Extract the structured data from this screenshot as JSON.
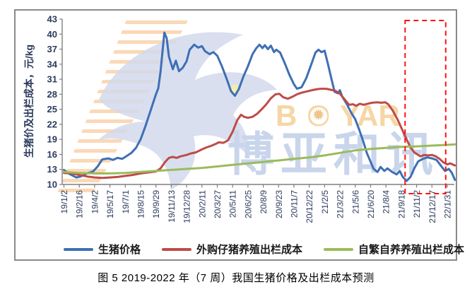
{
  "caption": "图 5 2019-2022 年（7 周）我国生猪价格及出栏成本预测",
  "watermark": {
    "brand_b": "B",
    "brand_o": "O",
    "sun_glyph": "✹",
    "brand_yar": "YAR",
    "brand_cn": "博亚和讯",
    "orange": "#F6D6A4",
    "blue": "#C9D5EB"
  },
  "chart_data": {
    "type": "line",
    "title": "图 5 2019-2022 年（7 周）我国生猪价格及出栏成本预测",
    "ylabel": "生猪价及出栏成本，元/kg",
    "ylim": [
      10,
      43
    ],
    "yticks": [
      43,
      40,
      37,
      34,
      31,
      28,
      25,
      22,
      19,
      16,
      13,
      10
    ],
    "x_tick_labels": [
      "19/1/2",
      "19/2/16",
      "19/4/2",
      "19/5/17",
      "19/7/1",
      "19/8/15",
      "19/9/29",
      "19/11/13",
      "19/12/28",
      "20/2/11",
      "20/3/27",
      "20/5/11",
      "20/6/25",
      "20/8/9",
      "20/9/23",
      "20/11/7",
      "20/12/22",
      "21/2/5",
      "21/3/22",
      "21/5/6",
      "21/6/20",
      "21/8/4",
      "21/9/18",
      "21/11/2",
      "21/12/17",
      "22/1/31"
    ],
    "x_unit": "fractional index into x_tick_labels (ticks are 45 days apart, weekly data)",
    "grid": false,
    "legend_position": "bottom",
    "series": [
      {
        "name": "生猪价格",
        "color": "#3E6FB4",
        "points": [
          [
            0,
            12.9
          ],
          [
            0.35,
            12.1
          ],
          [
            0.8,
            11.4
          ],
          [
            1.1,
            11.6
          ],
          [
            1.5,
            12.2
          ],
          [
            1.9,
            12.6
          ],
          [
            2.2,
            13.6
          ],
          [
            2.5,
            15.0
          ],
          [
            2.9,
            15.2
          ],
          [
            3.2,
            14.9
          ],
          [
            3.5,
            15.3
          ],
          [
            3.8,
            15.1
          ],
          [
            4.1,
            15.7
          ],
          [
            4.4,
            16.3
          ],
          [
            4.7,
            17.3
          ],
          [
            5.0,
            19.0
          ],
          [
            5.3,
            21.5
          ],
          [
            5.7,
            25.2
          ],
          [
            6.0,
            28.0
          ],
          [
            6.15,
            29.2
          ],
          [
            6.3,
            32.5
          ],
          [
            6.55,
            40.3
          ],
          [
            6.7,
            39.2
          ],
          [
            6.85,
            35.5
          ],
          [
            7.1,
            33.0
          ],
          [
            7.3,
            34.7
          ],
          [
            7.5,
            32.6
          ],
          [
            7.75,
            33.3
          ],
          [
            8.0,
            34.6
          ],
          [
            8.2,
            36.9
          ],
          [
            8.5,
            37.9
          ],
          [
            8.75,
            37.3
          ],
          [
            9.0,
            37.6
          ],
          [
            9.2,
            36.6
          ],
          [
            9.5,
            36.0
          ],
          [
            9.75,
            36.4
          ],
          [
            10.0,
            35.7
          ],
          [
            10.3,
            33.6
          ],
          [
            10.6,
            31.2
          ],
          [
            10.9,
            28.6
          ],
          [
            11.15,
            27.7
          ],
          [
            11.4,
            29.0
          ],
          [
            11.7,
            31.5
          ],
          [
            12.0,
            33.6
          ],
          [
            12.3,
            36.0
          ],
          [
            12.55,
            37.2
          ],
          [
            12.75,
            37.9
          ],
          [
            12.95,
            37.2
          ],
          [
            13.1,
            37.8
          ],
          [
            13.3,
            37.0
          ],
          [
            13.5,
            37.7
          ],
          [
            13.7,
            36.4
          ],
          [
            13.85,
            36.9
          ],
          [
            14.1,
            36.3
          ],
          [
            14.4,
            34.2
          ],
          [
            14.7,
            31.9
          ],
          [
            15.0,
            30.0
          ],
          [
            15.2,
            29.1
          ],
          [
            15.5,
            29.4
          ],
          [
            15.8,
            31.2
          ],
          [
            16.1,
            33.7
          ],
          [
            16.4,
            36.3
          ],
          [
            16.6,
            36.9
          ],
          [
            16.8,
            36.4
          ],
          [
            17.0,
            36.7
          ],
          [
            17.2,
            34.3
          ],
          [
            17.45,
            31.0
          ],
          [
            17.65,
            28.5
          ],
          [
            17.85,
            28.2
          ],
          [
            18.0,
            28.8
          ],
          [
            18.15,
            27.5
          ],
          [
            18.45,
            26.0
          ],
          [
            18.7,
            24.5
          ],
          [
            19.0,
            23.0
          ],
          [
            19.25,
            21.0
          ],
          [
            19.5,
            18.8
          ],
          [
            19.75,
            16.3
          ],
          [
            20.0,
            14.5
          ],
          [
            20.2,
            13.1
          ],
          [
            20.45,
            12.5
          ],
          [
            20.65,
            13.5
          ],
          [
            20.9,
            12.7
          ],
          [
            21.1,
            13.2
          ],
          [
            21.4,
            12.5
          ],
          [
            21.7,
            12.0
          ],
          [
            21.9,
            12.7
          ],
          [
            22.1,
            11.5
          ],
          [
            22.35,
            10.7
          ],
          [
            22.6,
            11.5
          ],
          [
            22.85,
            13.2
          ],
          [
            23.1,
            14.6
          ],
          [
            23.4,
            15.1
          ],
          [
            23.7,
            15.4
          ],
          [
            24.0,
            15.2
          ],
          [
            24.3,
            14.9
          ],
          [
            24.6,
            13.7
          ],
          [
            24.85,
            12.7
          ],
          [
            25.1,
            13.1
          ],
          [
            25.3,
            12.3
          ],
          [
            25.5,
            10.9
          ]
        ]
      },
      {
        "name": "外购仔猪养殖出栏成本",
        "color": "#BE4B48",
        "points": [
          [
            0,
            12.3
          ],
          [
            0.5,
            12.2
          ],
          [
            1.0,
            11.9
          ],
          [
            1.5,
            11.6
          ],
          [
            2.0,
            11.4
          ],
          [
            2.5,
            11.3
          ],
          [
            3.0,
            11.4
          ],
          [
            3.5,
            11.5
          ],
          [
            4.0,
            11.7
          ],
          [
            4.5,
            11.9
          ],
          [
            5.0,
            12.2
          ],
          [
            5.5,
            12.4
          ],
          [
            6.0,
            12.6
          ],
          [
            6.3,
            13.2
          ],
          [
            6.6,
            14.5
          ],
          [
            6.85,
            15.3
          ],
          [
            7.1,
            15.5
          ],
          [
            7.35,
            15.3
          ],
          [
            7.6,
            15.6
          ],
          [
            8.0,
            15.9
          ],
          [
            8.3,
            16.2
          ],
          [
            8.6,
            16.4
          ],
          [
            9.0,
            17.0
          ],
          [
            9.3,
            17.4
          ],
          [
            9.6,
            17.7
          ],
          [
            9.9,
            18.1
          ],
          [
            10.1,
            18.4
          ],
          [
            10.4,
            18.3
          ],
          [
            10.7,
            18.8
          ],
          [
            11.0,
            20.5
          ],
          [
            11.3,
            22.8
          ],
          [
            11.55,
            23.9
          ],
          [
            11.75,
            23.5
          ],
          [
            12.0,
            23.3
          ],
          [
            12.3,
            23.5
          ],
          [
            12.6,
            24.1
          ],
          [
            12.9,
            25.0
          ],
          [
            13.2,
            26.0
          ],
          [
            13.5,
            27.2
          ],
          [
            13.8,
            28.0
          ],
          [
            14.05,
            28.1
          ],
          [
            14.3,
            27.4
          ],
          [
            14.6,
            27.1
          ],
          [
            14.9,
            27.5
          ],
          [
            15.2,
            28.0
          ],
          [
            15.5,
            28.3
          ],
          [
            15.9,
            28.6
          ],
          [
            16.3,
            28.9
          ],
          [
            16.7,
            29.1
          ],
          [
            17.1,
            29.1
          ],
          [
            17.4,
            28.9
          ],
          [
            17.7,
            28.7
          ],
          [
            18.0,
            28.1
          ],
          [
            18.3,
            27.0
          ],
          [
            18.6,
            25.9
          ],
          [
            18.85,
            26.0
          ],
          [
            19.05,
            25.7
          ],
          [
            19.3,
            26.1
          ],
          [
            19.55,
            25.9
          ],
          [
            19.8,
            26.1
          ],
          [
            20.1,
            26.3
          ],
          [
            20.4,
            26.4
          ],
          [
            20.7,
            26.3
          ],
          [
            20.95,
            26.4
          ],
          [
            21.15,
            26.0
          ],
          [
            21.45,
            24.7
          ],
          [
            21.75,
            23.0
          ],
          [
            22.05,
            21.0
          ],
          [
            22.35,
            19.0
          ],
          [
            22.6,
            17.4
          ],
          [
            22.85,
            16.4
          ],
          [
            23.05,
            16.0
          ],
          [
            23.25,
            15.6
          ],
          [
            23.5,
            15.9
          ],
          [
            23.75,
            15.8
          ],
          [
            24.0,
            15.9
          ],
          [
            24.25,
            15.6
          ],
          [
            24.5,
            15.1
          ],
          [
            24.75,
            14.4
          ],
          [
            25.0,
            14.0
          ],
          [
            25.2,
            14.2
          ],
          [
            25.5,
            13.8
          ]
        ]
      },
      {
        "name": "自繁自养养殖出栏成本",
        "color": "#9BBB59",
        "points": [
          [
            0,
            12.5
          ],
          [
            1,
            12.3
          ],
          [
            2,
            12.2
          ],
          [
            3,
            12.2
          ],
          [
            4,
            12.3
          ],
          [
            5,
            12.5
          ],
          [
            6,
            12.7
          ],
          [
            7,
            12.9
          ],
          [
            8,
            13.1
          ],
          [
            9,
            13.3
          ],
          [
            10,
            13.6
          ],
          [
            11,
            13.9
          ],
          [
            12,
            14.2
          ],
          [
            13,
            14.5
          ],
          [
            14,
            14.8
          ],
          [
            15,
            15.1
          ],
          [
            16,
            15.4
          ],
          [
            17,
            15.8
          ],
          [
            18,
            16.3
          ],
          [
            19,
            16.8
          ],
          [
            20,
            17.1
          ],
          [
            21,
            17.3
          ],
          [
            22,
            17.5
          ],
          [
            23,
            17.6
          ],
          [
            24,
            17.75
          ],
          [
            25,
            17.9
          ],
          [
            25.5,
            18.0
          ]
        ]
      }
    ],
    "forecast_box": {
      "color": "#FF1111",
      "x_from": 22.25,
      "x_to": 24.9,
      "note": "red dashed rectangle highlighting forecast period at right edge"
    }
  }
}
